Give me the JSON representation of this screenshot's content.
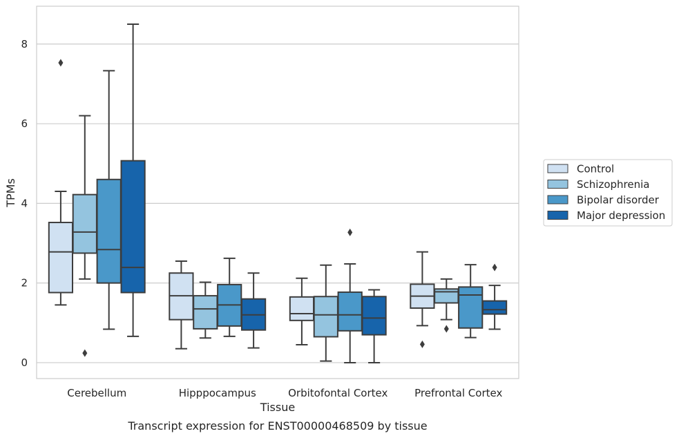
{
  "caption": "Transcript expression for ENST00000468509 by tissue",
  "chart_data": {
    "type": "box",
    "title": "",
    "xlabel": "Tissue",
    "ylabel": "TPMs",
    "ylim": [
      -0.4,
      8.95
    ],
    "yticks": [
      0,
      2,
      4,
      6,
      8
    ],
    "grid": "horizontal",
    "legend_position": "right, outside plot area",
    "categories": [
      "Cerebellum",
      "Hipppocampus",
      "Orbitofontal Cortex",
      "Prefrontal Cortex"
    ],
    "series": [
      {
        "name": "Control",
        "color": "#d0e1f2",
        "boxes": [
          {
            "whislo": 1.45,
            "q1": 1.76,
            "med": 2.78,
            "q3": 3.52,
            "whishi": 4.3,
            "fliers": [
              7.53
            ]
          },
          {
            "whislo": 0.35,
            "q1": 1.08,
            "med": 1.68,
            "q3": 2.25,
            "whishi": 2.55,
            "fliers": []
          },
          {
            "whislo": 0.45,
            "q1": 1.06,
            "med": 1.23,
            "q3": 1.65,
            "whishi": 2.12,
            "fliers": []
          },
          {
            "whislo": 0.93,
            "q1": 1.37,
            "med": 1.67,
            "q3": 1.97,
            "whishi": 2.78,
            "fliers": [
              0.46
            ]
          }
        ]
      },
      {
        "name": "Schizophrenia",
        "color": "#94c4df",
        "boxes": [
          {
            "whislo": 2.1,
            "q1": 2.75,
            "med": 3.28,
            "q3": 4.22,
            "whishi": 6.2,
            "fliers": [
              0.24
            ]
          },
          {
            "whislo": 0.62,
            "q1": 0.85,
            "med": 1.35,
            "q3": 1.68,
            "whishi": 2.02,
            "fliers": []
          },
          {
            "whislo": 0.04,
            "q1": 0.65,
            "med": 1.2,
            "q3": 1.66,
            "whishi": 2.45,
            "fliers": []
          },
          {
            "whislo": 1.08,
            "q1": 1.5,
            "med": 1.78,
            "q3": 1.85,
            "whishi": 2.1,
            "fliers": [
              0.85
            ]
          }
        ]
      },
      {
        "name": "Bipolar disorder",
        "color": "#4a98c9",
        "boxes": [
          {
            "whislo": 0.84,
            "q1": 2.0,
            "med": 2.84,
            "q3": 4.6,
            "whishi": 7.33,
            "fliers": []
          },
          {
            "whislo": 0.66,
            "q1": 0.92,
            "med": 1.45,
            "q3": 1.96,
            "whishi": 2.62,
            "fliers": []
          },
          {
            "whislo": 0.0,
            "q1": 0.8,
            "med": 1.2,
            "q3": 1.77,
            "whishi": 2.48,
            "fliers": [
              3.27
            ]
          },
          {
            "whislo": 0.63,
            "q1": 0.87,
            "med": 1.7,
            "q3": 1.9,
            "whishi": 2.46,
            "fliers": []
          }
        ]
      },
      {
        "name": "Major depression",
        "color": "#1764ab",
        "boxes": [
          {
            "whislo": 0.66,
            "q1": 1.76,
            "med": 2.39,
            "q3": 5.07,
            "whishi": 8.5,
            "fliers": []
          },
          {
            "whislo": 0.37,
            "q1": 0.82,
            "med": 1.2,
            "q3": 1.6,
            "whishi": 2.25,
            "fliers": []
          },
          {
            "whislo": 0.0,
            "q1": 0.7,
            "med": 1.12,
            "q3": 1.66,
            "whishi": 1.83,
            "fliers": []
          },
          {
            "whislo": 0.84,
            "q1": 1.22,
            "med": 1.33,
            "q3": 1.55,
            "whishi": 1.94,
            "fliers": [
              2.39
            ]
          }
        ]
      }
    ]
  }
}
